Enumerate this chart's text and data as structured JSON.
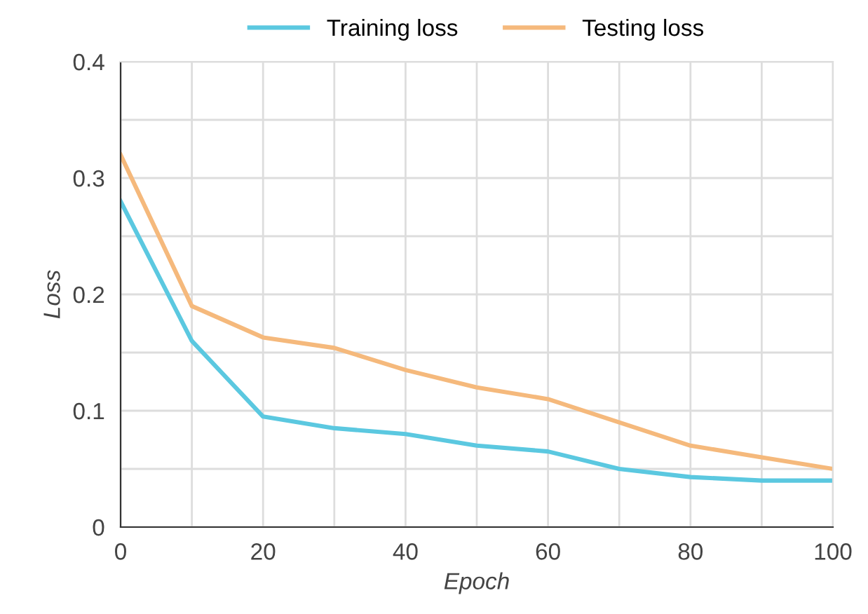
{
  "chart_data": {
    "type": "line",
    "xlabel": "Epoch",
    "ylabel": "Loss",
    "x": [
      0,
      10,
      20,
      30,
      40,
      50,
      60,
      70,
      80,
      90,
      100
    ],
    "series": [
      {
        "name": "Training loss",
        "color": "#5bc8e0",
        "values": [
          0.28,
          0.16,
          0.095,
          0.085,
          0.08,
          0.07,
          0.065,
          0.05,
          0.043,
          0.04,
          0.04
        ]
      },
      {
        "name": "Testing loss",
        "color": "#f5b97c",
        "values": [
          0.32,
          0.19,
          0.163,
          0.154,
          0.135,
          0.12,
          0.11,
          0.09,
          0.07,
          0.06,
          0.05
        ]
      }
    ],
    "xlim": [
      0,
      100
    ],
    "ylim": [
      0,
      0.4
    ],
    "xticks": [
      0,
      {
        "value": 10,
        "label": null
      },
      20,
      {
        "value": 30,
        "label": null
      },
      40,
      {
        "value": 50,
        "label": null
      },
      60,
      {
        "value": 70,
        "label": null
      },
      80,
      {
        "value": 90,
        "label": null
      },
      100
    ],
    "yticks": [
      {
        "value": 0,
        "label": "0"
      },
      {
        "value": 0.05,
        "label": null
      },
      0.1,
      {
        "value": 0.15,
        "label": null
      },
      0.2,
      {
        "value": 0.25,
        "label": null
      },
      0.3,
      {
        "value": 0.35,
        "label": null
      },
      0.4
    ],
    "grid": true,
    "legend": "top",
    "marker": "none",
    "line_style": "solid"
  }
}
